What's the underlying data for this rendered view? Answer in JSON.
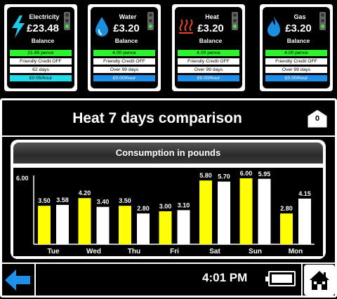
{
  "meters": [
    {
      "name": "Electricity",
      "amount": "£23.48",
      "balance_label": "Balance",
      "rate": "21.89 pence",
      "credit": "Friendly Credit OFF",
      "days": "62 days",
      "per_hour": "£0.05/hour",
      "icon": "lightning-bolt-icon",
      "icon_color": "#1fc7e6",
      "rate_color": "#2ef22e",
      "per_hour_color": "#22dcea"
    },
    {
      "name": "Water",
      "amount": "£3.20",
      "balance_label": "Balance",
      "rate": "4.00 pence",
      "credit": "Friendly Credit OFF",
      "days": "Over 99 days",
      "per_hour": "£0.00/hour",
      "icon": "water-drop-icon",
      "icon_color": "#1a8fe0",
      "rate_color": "#2ef22e",
      "per_hour_color": "#1f8fe8"
    },
    {
      "name": "Heat",
      "amount": "£3.20",
      "balance_label": "Balance",
      "rate": "4.00 pence",
      "credit": "Friendly Credit OFF",
      "days": "Over 99 days",
      "per_hour": "£0.00/hour",
      "icon": "heat-waves-icon",
      "icon_color": "#e8442a",
      "rate_color": "#2ef22e",
      "per_hour_color": "#1f8fe8"
    },
    {
      "name": "Gas",
      "amount": "£3.20",
      "balance_label": "Balance",
      "rate": "4.00 pence",
      "credit": "Friendly Credit OFF",
      "days": "Over 99 days",
      "per_hour": "£0.00/hour",
      "icon": "gas-flame-icon",
      "icon_color": "#1a8fe0",
      "rate_color": "#2ef22e",
      "per_hour_color": "#1f8fe8"
    }
  ],
  "header": {
    "title": "Heat 7 days comparison",
    "badge_count": "0",
    "badge_icon": "envelope-icon"
  },
  "chart_data": {
    "type": "bar",
    "title": "Consumption in pounds",
    "ymax_label": "6.00",
    "ylim": [
      0,
      6.0
    ],
    "categories": [
      "Tue",
      "Wed",
      "Thu",
      "Fri",
      "Sat",
      "Sun",
      "Mon"
    ],
    "series": [
      {
        "color": "#ffff00",
        "values": [
          3.5,
          4.2,
          3.5,
          3.0,
          5.8,
          6.0,
          2.8
        ]
      },
      {
        "color": "#ffffff",
        "values": [
          3.58,
          3.4,
          2.8,
          3.1,
          5.7,
          5.95,
          4.15
        ]
      }
    ],
    "value_labels": [
      [
        "3.50",
        "3.58"
      ],
      [
        "4.20",
        "3.40"
      ],
      [
        "3.50",
        "2.80"
      ],
      [
        "3.00",
        "3.10"
      ],
      [
        "5.80",
        "5.70"
      ],
      [
        "6.00",
        "5.95"
      ],
      [
        "2.80",
        "4.15"
      ]
    ]
  },
  "footer": {
    "time": "4:01 PM",
    "back_icon": "back-arrow-icon",
    "battery_icon": "battery-icon",
    "home_icon": "home-icon",
    "accent": "#1f8fe8"
  }
}
